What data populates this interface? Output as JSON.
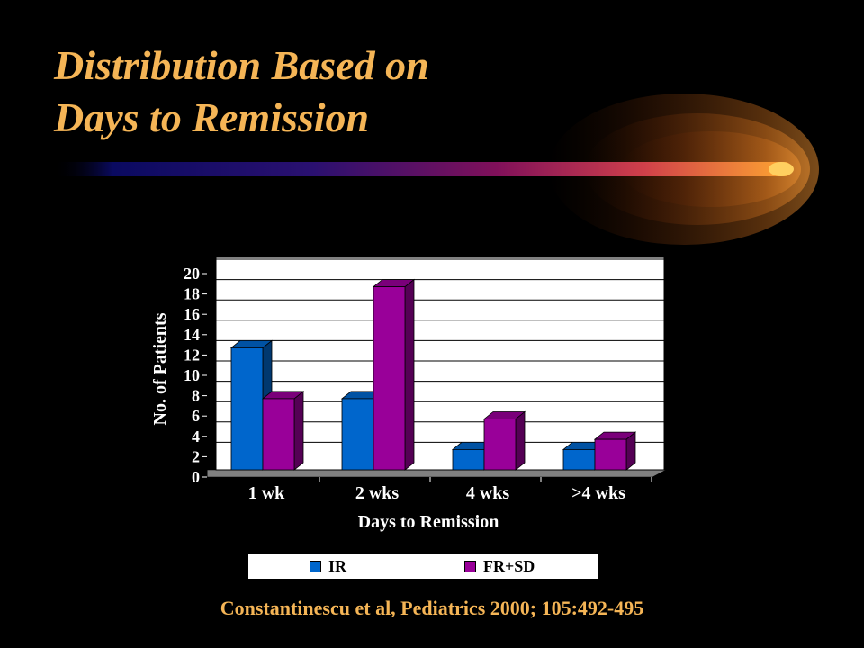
{
  "slide": {
    "title_line1": "Distribution Based on",
    "title_line2": "Days to Remission",
    "citation": "Constantinescu et al, Pediatrics 2000; 105:492-495",
    "colors": {
      "background": "#000000",
      "title": "#F5B556",
      "citation": "#F5B556",
      "plot_area": "#FFFFFF",
      "floor": "#808080"
    }
  },
  "chart_data": {
    "type": "bar",
    "title": "",
    "categories": [
      "1 wk",
      "2 wks",
      "4 wks",
      ">4 wks"
    ],
    "series": [
      {
        "name": "IR",
        "values": [
          12,
          7,
          2,
          2
        ],
        "color": "#0066CC"
      },
      {
        "name": "FR+SD",
        "values": [
          7,
          18,
          5,
          3
        ],
        "color": "#990099"
      }
    ],
    "xlabel": "Days to Remission",
    "ylabel": "No. of Patients",
    "ylim": [
      0,
      20
    ],
    "yticks": [
      "0",
      "2",
      "4",
      "6",
      "8",
      "10",
      "12",
      "14",
      "16",
      "18",
      "20"
    ],
    "grid": true,
    "legend": "bottom",
    "style": "3d-clustered-bar"
  }
}
